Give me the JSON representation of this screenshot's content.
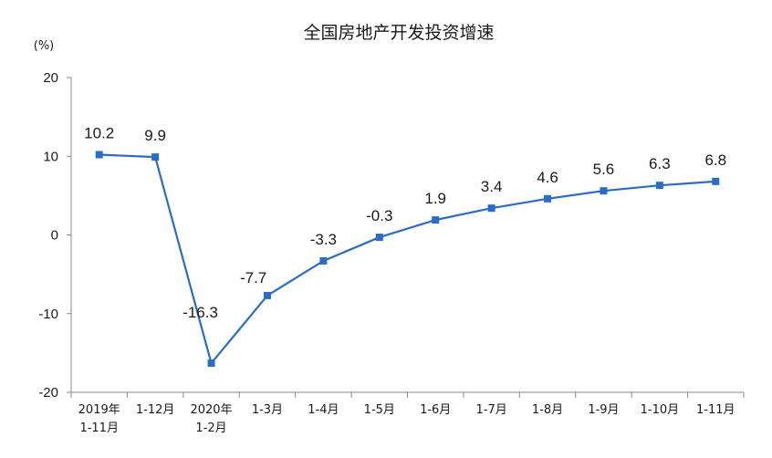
{
  "chart_data": {
    "type": "line",
    "title": "全国房地产开发投资增速",
    "ylabel": "(%)",
    "xlabel": "",
    "ylim": [
      -20,
      20
    ],
    "yticks": [
      20,
      10,
      0,
      -10,
      -20
    ],
    "grid": false,
    "legend": "none",
    "categories": [
      [
        "2019年",
        "1-11月"
      ],
      [
        "1-12月"
      ],
      [
        "2020年",
        "1-2月"
      ],
      [
        "1-3月"
      ],
      [
        "1-4月"
      ],
      [
        "1-5月"
      ],
      [
        "1-6月"
      ],
      [
        "1-7月"
      ],
      [
        "1-8月"
      ],
      [
        "1-9月"
      ],
      [
        "1-10月"
      ],
      [
        "1-11月"
      ]
    ],
    "values": [
      10.2,
      9.9,
      -16.3,
      -7.7,
      -3.3,
      -0.3,
      1.9,
      3.4,
      4.6,
      5.6,
      6.3,
      6.8
    ],
    "data_labels": [
      "10.2",
      "9.9",
      "-16.3",
      "-7.7",
      "-3.3",
      "-0.3",
      "1.9",
      "3.4",
      "4.6",
      "5.6",
      "6.3",
      "6.8"
    ],
    "line_color": "#2b6cc4",
    "axis_color": "#888888"
  }
}
